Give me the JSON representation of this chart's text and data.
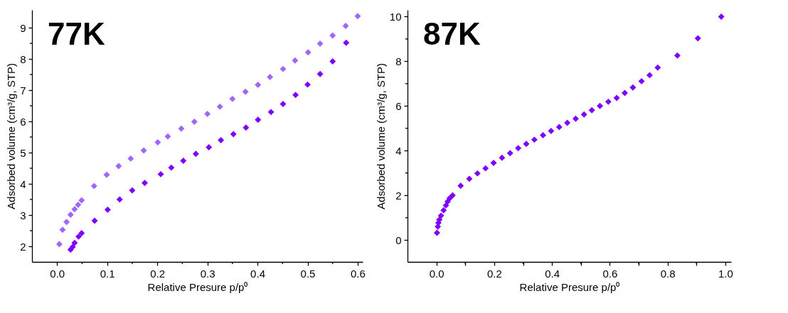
{
  "chart_data": [
    {
      "type": "scatter",
      "annotations": [
        "77K"
      ],
      "xlabel": "Relative Presure p/p⁰",
      "ylabel": "Adsorbed volume (cm³/g, STP)",
      "marker": "diamond",
      "grid": false,
      "xlim": [
        -0.05,
        0.61
      ],
      "ylim": [
        1.5,
        9.57
      ],
      "xticks": [
        {
          "value": 0,
          "label": "0.0"
        },
        {
          "value": 0.05,
          "label": null
        },
        {
          "value": 0.1,
          "label": "0.1"
        },
        {
          "value": 0.15,
          "label": null
        },
        {
          "value": 0.2,
          "label": "0.2"
        },
        {
          "value": 0.25,
          "label": null
        },
        {
          "value": 0.3,
          "label": "0.3"
        },
        {
          "value": 0.35,
          "label": null
        },
        {
          "value": 0.4,
          "label": "0.4"
        },
        {
          "value": 0.45,
          "label": null
        },
        {
          "value": 0.5,
          "label": "0.5"
        },
        {
          "value": 0.55,
          "label": null
        },
        {
          "value": 0.6,
          "label": "0.6"
        }
      ],
      "yticks": [
        2,
        {
          "value": 2.5,
          "label": null
        },
        3,
        {
          "value": 3.5,
          "label": null
        },
        4,
        {
          "value": 4.5,
          "label": null
        },
        5,
        {
          "value": 5.5,
          "label": null
        },
        6,
        {
          "value": 6.5,
          "label": null
        },
        7,
        {
          "value": 7.5,
          "label": null
        },
        8,
        {
          "value": 8.5,
          "label": null
        },
        9
      ],
      "series": [
        {
          "color": "#a066ff",
          "x": [
            0.0045,
            0.011,
            0.019,
            0.027,
            0.035,
            0.042,
            0.049,
            0.074,
            0.099,
            0.123,
            0.147,
            0.173,
            0.201,
            0.221,
            0.248,
            0.274,
            0.3,
            0.325,
            0.35,
            0.376,
            0.401,
            0.425,
            0.451,
            0.475,
            0.501,
            0.525,
            0.55,
            0.576,
            0.6
          ],
          "values": [
            2.07,
            2.53,
            2.78,
            3.01,
            3.19,
            3.33,
            3.47,
            3.93,
            4.29,
            4.57,
            4.81,
            5.07,
            5.33,
            5.52,
            5.77,
            5.99,
            6.24,
            6.47,
            6.72,
            6.95,
            7.17,
            7.42,
            7.68,
            7.95,
            8.21,
            8.49,
            8.75,
            9.06,
            9.37
          ]
        },
        {
          "color": "#8000ff",
          "x": [
            0.027,
            0.031,
            0.035,
            0.043,
            0.049,
            0.075,
            0.101,
            0.125,
            0.15,
            0.175,
            0.207,
            0.228,
            0.252,
            0.277,
            0.303,
            0.327,
            0.352,
            0.377,
            0.401,
            0.427,
            0.451,
            0.476,
            0.5,
            0.525,
            0.55,
            0.577
          ],
          "values": [
            1.89,
            1.98,
            2.11,
            2.31,
            2.42,
            2.82,
            3.17,
            3.5,
            3.79,
            4.03,
            4.31,
            4.52,
            4.74,
            4.96,
            5.17,
            5.4,
            5.59,
            5.8,
            6.05,
            6.3,
            6.56,
            6.85,
            7.18,
            7.52,
            7.92,
            8.52
          ]
        }
      ]
    },
    {
      "type": "scatter",
      "annotations": [
        "87K"
      ],
      "xlabel": "Relative Presure p/p⁰",
      "ylabel": "Adsorbed volume (cm³/g, STP)",
      "marker": "diamond",
      "grid": false,
      "xlim": [
        -0.1,
        1.02
      ],
      "ylim": [
        -0.98,
        10.3
      ],
      "xticks": [
        {
          "value": 0,
          "label": "0.0"
        },
        {
          "value": 0.1,
          "label": null
        },
        {
          "value": 0.2,
          "label": "0.2"
        },
        {
          "value": 0.3,
          "label": null
        },
        {
          "value": 0.4,
          "label": "0.4"
        },
        {
          "value": 0.5,
          "label": null
        },
        {
          "value": 0.6,
          "label": "0.6"
        },
        {
          "value": 0.7,
          "label": null
        },
        {
          "value": 0.8,
          "label": "0.8"
        },
        {
          "value": 0.9,
          "label": null
        },
        {
          "value": 1,
          "label": "1.0"
        }
      ],
      "yticks": [
        0,
        {
          "value": 1,
          "label": null
        },
        2,
        {
          "value": 3,
          "label": null
        },
        4,
        {
          "value": 5,
          "label": null
        },
        6,
        {
          "value": 7,
          "label": null
        },
        8,
        {
          "value": 9,
          "label": null
        },
        10
      ],
      "series": [
        {
          "color": "#8000ff",
          "x": [
            0.002,
            0.005,
            0.007,
            0.01,
            0.016,
            0.025,
            0.033,
            0.039,
            0.046,
            0.056,
            0.084,
            0.114,
            0.142,
            0.17,
            0.198,
            0.227,
            0.255,
            0.283,
            0.311,
            0.339,
            0.369,
            0.397,
            0.425,
            0.453,
            0.482,
            0.511,
            0.538,
            0.566,
            0.595,
            0.624,
            0.652,
            0.68,
            0.71,
            0.738,
            0.766,
            0.834,
            0.905,
            0.986
          ],
          "values": [
            0.32,
            0.6,
            0.77,
            0.91,
            1.09,
            1.33,
            1.55,
            1.72,
            1.87,
            2.0,
            2.43,
            2.74,
            2.98,
            3.21,
            3.45,
            3.68,
            3.89,
            4.11,
            4.3,
            4.49,
            4.69,
            4.88,
            5.06,
            5.25,
            5.43,
            5.62,
            5.81,
            6.0,
            6.19,
            6.36,
            6.58,
            6.83,
            7.11,
            7.38,
            7.72,
            8.26,
            9.03,
            10.0
          ]
        }
      ]
    }
  ]
}
